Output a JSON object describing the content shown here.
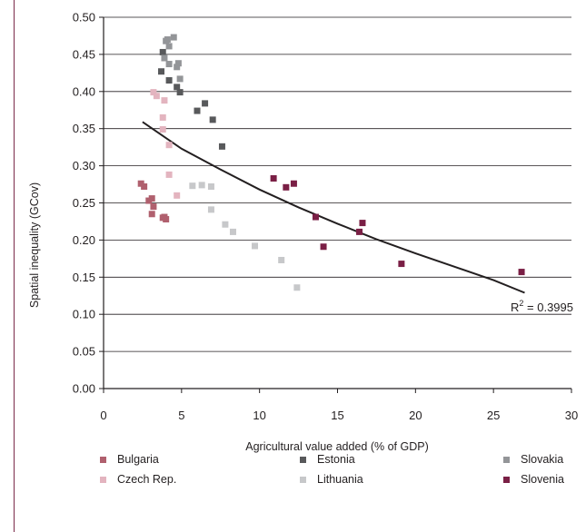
{
  "chart_data": {
    "type": "scatter",
    "title": "",
    "xlabel": "Agricultural value added (% of GDP)",
    "ylabel": "Spatial inequality (GCov)",
    "xlim": [
      0,
      30
    ],
    "ylim": [
      0,
      0.5
    ],
    "xticks": [
      "0",
      "5",
      "10",
      "15",
      "20",
      "25",
      "30"
    ],
    "yticks": [
      "0.00",
      "0.05",
      "0.10",
      "0.15",
      "0.20",
      "0.25",
      "0.30",
      "0.35",
      "0.40",
      "0.45",
      "0.50"
    ],
    "grid": "horizontal",
    "legend_position": "bottom",
    "trendline": {
      "type": "power",
      "label_prefix": "R",
      "label_sup": "2",
      "label_value": " = 0.3995",
      "x": [
        2.5,
        5,
        7.5,
        10,
        12.5,
        15,
        17.5,
        20,
        22.5,
        25,
        27
      ],
      "y": [
        0.359,
        0.323,
        0.295,
        0.268,
        0.244,
        0.222,
        0.201,
        0.182,
        0.164,
        0.146,
        0.129
      ]
    },
    "series": [
      {
        "name": "Bulgaria",
        "color": "#b0606e",
        "points": [
          [
            2.4,
            0.276
          ],
          [
            2.6,
            0.272
          ],
          [
            2.9,
            0.253
          ],
          [
            3.1,
            0.256
          ],
          [
            3.2,
            0.245
          ],
          [
            3.1,
            0.235
          ],
          [
            3.8,
            0.23
          ],
          [
            4.0,
            0.228
          ],
          [
            3.9,
            0.231
          ]
        ]
      },
      {
        "name": "Czech Rep.",
        "color": "#e3b4bf",
        "points": [
          [
            3.2,
            0.399
          ],
          [
            3.4,
            0.394
          ],
          [
            3.9,
            0.388
          ],
          [
            3.8,
            0.365
          ],
          [
            3.8,
            0.349
          ],
          [
            4.2,
            0.328
          ],
          [
            4.2,
            0.288
          ],
          [
            4.7,
            0.26
          ]
        ]
      },
      {
        "name": "Estonia",
        "color": "#58595b",
        "points": [
          [
            3.7,
            0.427
          ],
          [
            3.8,
            0.453
          ],
          [
            4.2,
            0.415
          ],
          [
            4.7,
            0.406
          ],
          [
            4.9,
            0.399
          ],
          [
            6.5,
            0.384
          ],
          [
            6.0,
            0.374
          ],
          [
            7.0,
            0.362
          ],
          [
            7.6,
            0.326
          ]
        ]
      },
      {
        "name": "Lithuania",
        "color": "#c7c8ca",
        "points": [
          [
            5.7,
            0.273
          ],
          [
            6.3,
            0.274
          ],
          [
            6.9,
            0.272
          ],
          [
            6.9,
            0.241
          ],
          [
            7.8,
            0.221
          ],
          [
            8.3,
            0.211
          ],
          [
            9.7,
            0.192
          ],
          [
            11.4,
            0.173
          ],
          [
            12.4,
            0.136
          ]
        ]
      },
      {
        "name": "Slovakia",
        "color": "#939598",
        "points": [
          [
            4.0,
            0.468
          ],
          [
            4.1,
            0.47
          ],
          [
            4.5,
            0.473
          ],
          [
            4.2,
            0.461
          ],
          [
            3.9,
            0.445
          ],
          [
            4.2,
            0.437
          ],
          [
            4.8,
            0.438
          ],
          [
            4.7,
            0.433
          ],
          [
            4.9,
            0.417
          ]
        ]
      },
      {
        "name": "Slovenia",
        "color": "#7a1f45",
        "points": [
          [
            10.9,
            0.283
          ],
          [
            11.7,
            0.271
          ],
          [
            12.2,
            0.276
          ],
          [
            13.6,
            0.231
          ],
          [
            14.1,
            0.191
          ],
          [
            16.4,
            0.211
          ],
          [
            16.6,
            0.223
          ],
          [
            19.1,
            0.168
          ],
          [
            26.8,
            0.157
          ]
        ]
      }
    ]
  }
}
